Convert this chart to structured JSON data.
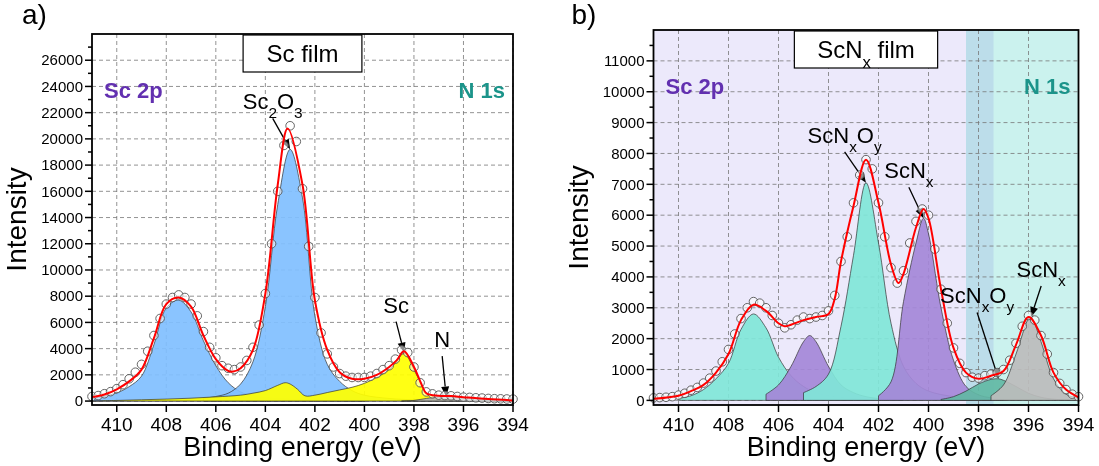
{
  "chart_data": [
    {
      "type": "area",
      "title": "Sc film",
      "xlabel": "Binding energy (eV)",
      "ylabel": "Intensity",
      "xlim": [
        411,
        394
      ],
      "ylim": [
        -300,
        28000
      ],
      "xticks": [
        410,
        408,
        406,
        404,
        402,
        400,
        398,
        396,
        394
      ],
      "yticks": [
        0,
        {
          "value": 1000,
          "label": null
        },
        2000,
        {
          "value": 3000,
          "label": null
        },
        4000,
        {
          "value": 5000,
          "label": null
        },
        6000,
        {
          "value": 7000,
          "label": null
        },
        8000,
        {
          "value": 9000,
          "label": null
        },
        10000,
        {
          "value": 11000,
          "label": null
        },
        12000,
        {
          "value": 13000,
          "label": null
        },
        14000,
        {
          "value": 15000,
          "label": null
        },
        16000,
        {
          "value": 17000,
          "label": null
        },
        18000,
        {
          "value": 19000,
          "label": null
        },
        20000,
        {
          "value": 21000,
          "label": null
        },
        22000,
        {
          "value": 23000,
          "label": null
        },
        24000,
        {
          "value": 25000,
          "label": null
        },
        26000,
        {
          "value": 27000,
          "label": null
        }
      ],
      "grid": true,
      "annotations": [
        "a)",
        "Sc 2p",
        "N 1s",
        {
          "text": "Sc$_{2}$O$_{3}$",
          "x": 403,
          "y": 19200
        },
        {
          "text": "Sc",
          "x": 398.4,
          "y": 3700
        },
        {
          "text": "N",
          "x": 396.7,
          "y": 350
        }
      ],
      "series": [
        {
          "color": "#80bfff",
          "x": [
            411,
            410.5,
            410,
            409.5,
            409,
            408.5,
            408,
            407.5,
            407,
            406.5,
            406,
            405.5,
            405,
            404.5,
            404,
            403,
            402,
            400
          ],
          "values": [
            200,
            380,
            620,
            1100,
            1900,
            4300,
            7100,
            7700,
            6800,
            4600,
            2700,
            1400,
            700,
            400,
            250,
            120,
            60,
            20
          ]
        },
        {
          "color": "#80bfff",
          "x": [
            406.5,
            406,
            405.5,
            405,
            404.5,
            404,
            403.5,
            403,
            402.5,
            402,
            401.5,
            401,
            400.5,
            400,
            399,
            398,
            396
          ],
          "values": [
            200,
            350,
            600,
            1300,
            3000,
            7200,
            15000,
            19200,
            15500,
            6500,
            2800,
            1500,
            800,
            450,
            200,
            100,
            30
          ]
        },
        {
          "color": "#ffff00",
          "x": [
            411,
            410,
            409,
            408,
            407,
            406,
            405,
            404.5,
            404,
            403.5,
            403.2,
            403,
            402.7,
            402.4,
            402,
            401.5,
            401,
            400.5,
            400,
            399.5,
            399,
            398.7,
            398.4,
            398.2,
            398,
            397.7,
            397.5,
            397,
            396.5,
            396,
            395,
            394
          ],
          "values": [
            0,
            50,
            100,
            150,
            220,
            320,
            450,
            600,
            800,
            1200,
            1400,
            1300,
            900,
            400,
            450,
            650,
            850,
            1050,
            1350,
            1800,
            2400,
            3000,
            3700,
            3200,
            2400,
            1300,
            650,
            250,
            120,
            60,
            20,
            0
          ]
        },
        {
          "color": "#b4b4b4",
          "x": [
            398.5,
            398,
            397.5,
            397,
            396.7,
            396.3,
            396,
            395,
            394
          ],
          "values": [
            0,
            50,
            200,
            320,
            350,
            300,
            250,
            150,
            80
          ]
        },
        {
          "type": "scatter",
          "marker": "circle",
          "color": "#555555",
          "x": [
            411,
            410.75,
            410.5,
            410.25,
            410,
            409.75,
            409.5,
            409.25,
            409,
            408.75,
            408.5,
            408.25,
            408,
            407.75,
            407.5,
            407.25,
            407,
            406.75,
            406.5,
            406.25,
            406,
            405.75,
            405.5,
            405.25,
            405,
            404.75,
            404.5,
            404.25,
            404,
            403.75,
            403.5,
            403.25,
            403,
            402.75,
            402.5,
            402.25,
            402,
            401.75,
            401.5,
            401.25,
            401,
            400.75,
            400.5,
            400.25,
            400,
            399.75,
            399.5,
            399.25,
            399,
            398.75,
            398.5,
            398.25,
            398,
            397.75,
            397.5,
            397.25,
            397,
            396.75,
            396.5,
            396.25,
            396,
            395.75,
            395.5,
            395.25,
            395,
            394.75,
            394.5,
            394.25,
            394
          ],
          "values": [
            350,
            420,
            560,
            720,
            950,
            1250,
            1700,
            2200,
            2800,
            3800,
            5000,
            6300,
            7400,
            7900,
            8100,
            7900,
            7400,
            6500,
            5300,
            4100,
            3300,
            2700,
            2500,
            2400,
            2600,
            3100,
            4100,
            5800,
            8200,
            12000,
            16000,
            19500,
            21000,
            19800,
            16200,
            11800,
            7900,
            5200,
            3600,
            2600,
            2100,
            1900,
            1800,
            1800,
            1800,
            1900,
            2100,
            2400,
            2700,
            3200,
            3900,
            3700,
            2600,
            1400,
            700,
            550,
            450,
            420,
            400,
            350,
            300,
            280,
            250,
            230,
            200,
            180,
            170,
            160,
            150
          ]
        },
        {
          "type": "line",
          "color": "#ff0000",
          "x": [
            411,
            410.5,
            410,
            409.5,
            409,
            408.5,
            408,
            407.5,
            407,
            406.5,
            406,
            405.5,
            405.3,
            405,
            404.5,
            404,
            403.5,
            403.1,
            402.5,
            402,
            401.5,
            401,
            400.5,
            400,
            399.5,
            399,
            398.7,
            398.4,
            398,
            397.7,
            397.5,
            397,
            396.5,
            396,
            395,
            394
          ],
          "values": [
            300,
            500,
            900,
            1500,
            2400,
            4800,
            7400,
            7900,
            7200,
            5000,
            3200,
            2300,
            2250,
            2500,
            3900,
            8200,
            16500,
            20800,
            16500,
            7700,
            3900,
            2200,
            1700,
            1700,
            2000,
            2600,
            3100,
            3800,
            2600,
            1300,
            600,
            400,
            380,
            300,
            150,
            50
          ]
        }
      ]
    },
    {
      "type": "area",
      "title": "ScN$_{x}$ film",
      "xlabel": "Binding energy (eV)",
      "ylabel": "Intensity",
      "xlim": [
        411,
        394
      ],
      "ylim": [
        -150,
        12000
      ],
      "xticks": [
        410,
        408,
        406,
        404,
        402,
        400,
        398,
        396,
        394
      ],
      "yticks": [
        0,
        {
          "value": 500,
          "label": null
        },
        1000,
        {
          "value": 1500,
          "label": null
        },
        2000,
        {
          "value": 2500,
          "label": null
        },
        3000,
        {
          "value": 3500,
          "label": null
        },
        4000,
        {
          "value": 4500,
          "label": null
        },
        5000,
        {
          "value": 5500,
          "label": null
        },
        6000,
        {
          "value": 6500,
          "label": null
        },
        7000,
        {
          "value": 7500,
          "label": null
        },
        8000,
        {
          "value": 8500,
          "label": null
        },
        9000,
        {
          "value": 9500,
          "label": null
        },
        10000,
        {
          "value": 10500,
          "label": null
        },
        11000,
        {
          "value": 11500,
          "label": null
        }
      ],
      "grid": true,
      "bands": [
        {
          "axis": "x",
          "from": 411,
          "to": 397.4,
          "color": "#ece9fb"
        },
        {
          "axis": "x",
          "from": 398.5,
          "to": 394,
          "color": "#cbf2ee"
        }
      ],
      "annotations": [
        "b)",
        "Sc 2p",
        "N 1s",
        {
          "text": "ScN$_{x}$O$_{y}$",
          "x": 402.5,
          "y": 7050
        },
        {
          "text": "ScN$_{x}$",
          "x": 400.2,
          "y": 5900
        },
        {
          "text": "ScN$_{x}$O$_{y}$",
          "x": 397.2,
          "y": 700
        },
        {
          "text": "ScN$_{x}$",
          "x": 395.9,
          "y": 2700
        }
      ],
      "series": [
        {
          "color": "#80e6d8",
          "x": [
            410,
            409.5,
            409,
            408.5,
            408,
            407.5,
            407,
            406.5,
            406,
            405.5,
            405,
            404.5,
            404,
            403,
            402
          ],
          "values": [
            60,
            150,
            350,
            700,
            1200,
            2300,
            2800,
            2350,
            1400,
            800,
            450,
            250,
            150,
            60,
            20
          ]
        },
        {
          "color": "#a487d8",
          "x": [
            406.5,
            406,
            405.5,
            405,
            404.75,
            404.5,
            404,
            403.5,
            403,
            402.5,
            402,
            401
          ],
          "values": [
            200,
            500,
            1100,
            1900,
            2100,
            1900,
            1100,
            500,
            250,
            120,
            60,
            20
          ]
        },
        {
          "color": "#80e6d8",
          "x": [
            405,
            404.5,
            404,
            403.5,
            403,
            402.5,
            402,
            401.5,
            401,
            400.5,
            400,
            399,
            398,
            397
          ],
          "values": [
            250,
            450,
            850,
            2400,
            4700,
            7050,
            5100,
            2500,
            1100,
            550,
            300,
            120,
            50,
            20
          ]
        },
        {
          "color": "#a487d8",
          "x": [
            402,
            401.5,
            401,
            400.5,
            400.2,
            400,
            399.5,
            399,
            398.5,
            398,
            397.5,
            397
          ],
          "values": [
            150,
            600,
            3200,
            5100,
            5900,
            5400,
            3000,
            1300,
            450,
            180,
            80,
            30
          ]
        },
        {
          "color": "#62b8a4",
          "x": [
            399.5,
            399,
            398.5,
            398,
            397.5,
            397.2,
            397,
            396.5,
            396,
            395.5,
            395,
            394
          ],
          "values": [
            30,
            120,
            300,
            530,
            680,
            700,
            650,
            450,
            230,
            100,
            40,
            0
          ]
        },
        {
          "color": "#bcbcbc",
          "x": [
            397.5,
            397,
            396.5,
            396,
            395.9,
            395.5,
            395,
            394.5,
            394
          ],
          "values": [
            150,
            500,
            1500,
            2650,
            2700,
            1900,
            700,
            200,
            70
          ]
        },
        {
          "type": "scatter",
          "marker": "circle",
          "color": "#555555",
          "x": [
            411,
            410.75,
            410.5,
            410.25,
            410,
            409.75,
            409.5,
            409.25,
            409,
            408.75,
            408.5,
            408.25,
            408,
            407.75,
            407.5,
            407.25,
            407,
            406.75,
            406.5,
            406.25,
            406,
            405.75,
            405.5,
            405.25,
            405,
            404.75,
            404.5,
            404.25,
            404,
            403.75,
            403.5,
            403.25,
            403,
            402.75,
            402.5,
            402.25,
            402,
            401.75,
            401.5,
            401.25,
            401,
            400.75,
            400.5,
            400.25,
            400,
            399.75,
            399.5,
            399.25,
            399,
            398.75,
            398.5,
            398.25,
            398,
            397.75,
            397.5,
            397.25,
            397,
            396.75,
            396.5,
            396.25,
            396,
            395.75,
            395.5,
            395.25,
            395,
            394.75,
            394.5,
            394.25,
            394
          ],
          "values": [
            80,
            90,
            100,
            120,
            170,
            230,
            330,
            420,
            560,
            720,
            950,
            1250,
            1650,
            2150,
            2650,
            3000,
            3200,
            3150,
            3000,
            2750,
            2500,
            2350,
            2450,
            2600,
            2700,
            2650,
            2700,
            2750,
            2900,
            3400,
            4500,
            5300,
            6400,
            7300,
            7800,
            7500,
            6400,
            5300,
            4300,
            3800,
            4200,
            5100,
            5800,
            6200,
            6000,
            4900,
            3600,
            2500,
            1700,
            1200,
            900,
            750,
            720,
            800,
            850,
            900,
            1000,
            1300,
            1850,
            2400,
            2750,
            2600,
            2100,
            1500,
            900,
            550,
            350,
            200,
            120
          ]
        },
        {
          "type": "line",
          "color": "#ff0000",
          "x": [
            411,
            410,
            409.5,
            409,
            408.5,
            408,
            407.5,
            407,
            406.5,
            406,
            405.75,
            405.5,
            405,
            404.5,
            404,
            403.75,
            403.5,
            403,
            402.5,
            402,
            401.5,
            401.2,
            401,
            400.5,
            400.2,
            400,
            399.5,
            399,
            398.5,
            398,
            397.5,
            397,
            396.5,
            396,
            395.5,
            395,
            394.5,
            394
          ],
          "values": [
            50,
            150,
            300,
            500,
            900,
            1500,
            2600,
            3100,
            2900,
            2500,
            2400,
            2450,
            2600,
            2700,
            2800,
            3300,
            4500,
            6300,
            7800,
            6400,
            4400,
            3800,
            4100,
            5600,
            6200,
            5900,
            3600,
            1700,
            900,
            700,
            800,
            950,
            1800,
            2700,
            2100,
            900,
            350,
            100
          ]
        }
      ]
    }
  ]
}
